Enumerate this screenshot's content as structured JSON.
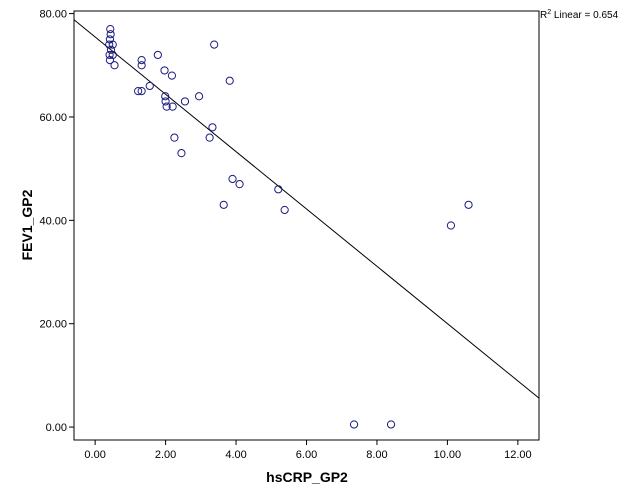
{
  "chart_data": {
    "type": "scatter",
    "xlabel": "hsCRP_GP2",
    "ylabel": "FEV1_GP2",
    "xlim": [
      -0.6,
      12.6
    ],
    "ylim": [
      -2.5,
      80.5
    ],
    "x_ticks": [
      0,
      2,
      4,
      6,
      8,
      10,
      12
    ],
    "x_tick_labels": [
      "0.00",
      "2.00",
      "4.00",
      "6.00",
      "8.00",
      "10.00",
      "12.00"
    ],
    "y_ticks": [
      0,
      20,
      40,
      60,
      80
    ],
    "y_tick_labels": [
      "0.00",
      "20.00",
      "40.00",
      "60.00",
      "80.00"
    ],
    "grid": false,
    "marker": "open-circle",
    "marker_color": "#1a1a80",
    "annotation": {
      "r_label": "R",
      "r_superscript": "2",
      "text": " Linear = 0.654"
    },
    "fit_line": {
      "type": "linear",
      "x": [
        -0.6,
        12.6
      ],
      "y": [
        78.8,
        5.6
      ]
    },
    "points": [
      {
        "x": 0.43,
        "y": 77
      },
      {
        "x": 0.44,
        "y": 76
      },
      {
        "x": 0.42,
        "y": 75
      },
      {
        "x": 0.5,
        "y": 74
      },
      {
        "x": 0.4,
        "y": 74
      },
      {
        "x": 0.45,
        "y": 73
      },
      {
        "x": 0.41,
        "y": 72
      },
      {
        "x": 0.5,
        "y": 72
      },
      {
        "x": 0.42,
        "y": 71
      },
      {
        "x": 0.55,
        "y": 70
      },
      {
        "x": 1.32,
        "y": 71
      },
      {
        "x": 1.32,
        "y": 70
      },
      {
        "x": 1.22,
        "y": 65
      },
      {
        "x": 1.32,
        "y": 65
      },
      {
        "x": 1.55,
        "y": 66
      },
      {
        "x": 1.78,
        "y": 72
      },
      {
        "x": 1.97,
        "y": 69
      },
      {
        "x": 1.99,
        "y": 64
      },
      {
        "x": 2.0,
        "y": 63
      },
      {
        "x": 2.03,
        "y": 62
      },
      {
        "x": 2.18,
        "y": 68
      },
      {
        "x": 2.2,
        "y": 62
      },
      {
        "x": 2.25,
        "y": 56
      },
      {
        "x": 2.45,
        "y": 53
      },
      {
        "x": 2.55,
        "y": 63
      },
      {
        "x": 2.95,
        "y": 64
      },
      {
        "x": 3.25,
        "y": 56
      },
      {
        "x": 3.33,
        "y": 58
      },
      {
        "x": 3.38,
        "y": 74
      },
      {
        "x": 3.65,
        "y": 43
      },
      {
        "x": 3.82,
        "y": 67
      },
      {
        "x": 3.9,
        "y": 48
      },
      {
        "x": 4.1,
        "y": 47
      },
      {
        "x": 5.2,
        "y": 46
      },
      {
        "x": 5.38,
        "y": 42
      },
      {
        "x": 7.35,
        "y": 0.5
      },
      {
        "x": 8.4,
        "y": 0.5
      },
      {
        "x": 10.1,
        "y": 39
      },
      {
        "x": 10.6,
        "y": 43
      }
    ]
  }
}
